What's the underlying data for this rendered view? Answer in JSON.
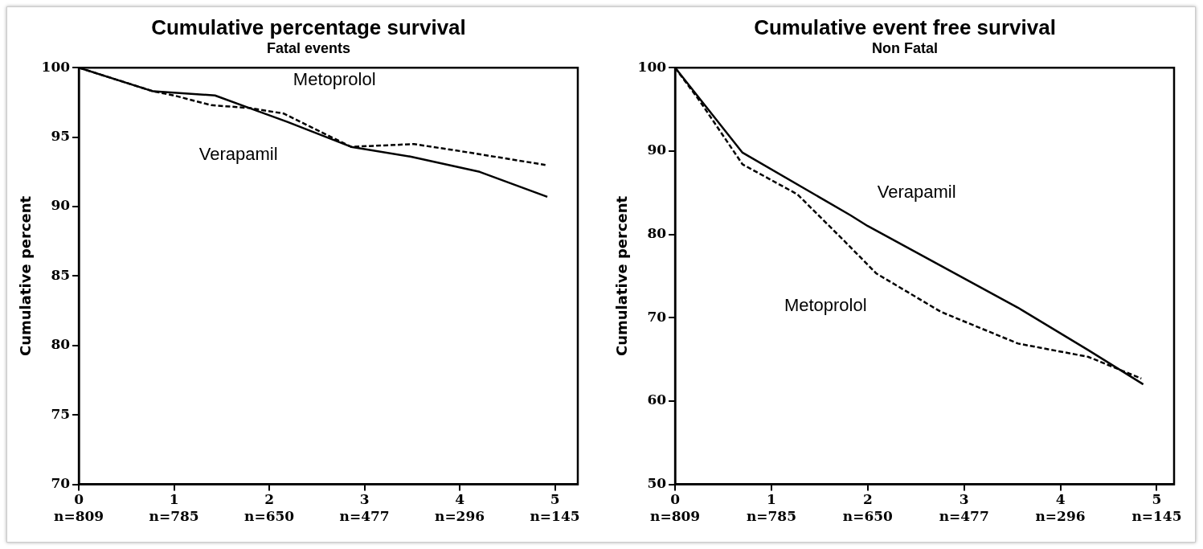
{
  "chart_data": [
    {
      "type": "line",
      "title": "Cumulative percentage survival",
      "subtitle": "Fatal events",
      "ylabel": "Cumulative percent",
      "xlim": [
        0,
        5.24
      ],
      "ylim": [
        70,
        100
      ],
      "xticks": [
        0,
        1,
        2,
        3,
        4,
        5
      ],
      "yticks": [
        70,
        75,
        80,
        85,
        90,
        95,
        100
      ],
      "grid": false,
      "legend": false,
      "marker": "none",
      "series": [
        {
          "name": "Verapamil",
          "color": "#000000",
          "line_style": "solid",
          "x": [
            0,
            0.78,
            1.43,
            1.79,
            2.19,
            2.86,
            3.48,
            4.21,
            4.92
          ],
          "values": [
            100,
            98.3,
            98.0,
            97.1,
            96.1,
            94.3,
            93.6,
            92.5,
            90.7
          ]
        },
        {
          "name": "Metoprolol",
          "color": "#000000",
          "line_style": "dashed",
          "x": [
            0,
            0.78,
            1.0,
            1.39,
            1.79,
            2.15,
            2.86,
            3.52,
            4.0,
            4.9
          ],
          "values": [
            100,
            98.3,
            98.0,
            97.3,
            97.1,
            96.7,
            94.3,
            94.5,
            94.0,
            93.0
          ]
        }
      ],
      "annotations": [
        "n=809",
        "n=785",
        "n=650",
        "n=477",
        "n=296",
        "n=145"
      ]
    },
    {
      "type": "line",
      "title": "Cumulative event free survival",
      "subtitle": "Non Fatal",
      "ylabel": "Cumulative percent",
      "xlim": [
        0,
        5.18
      ],
      "ylim": [
        50,
        100
      ],
      "xticks": [
        0,
        1,
        2,
        3,
        4,
        5
      ],
      "yticks": [
        50,
        60,
        70,
        80,
        90,
        100
      ],
      "grid": false,
      "legend": false,
      "marker": "none",
      "series": [
        {
          "name": "Verapamil",
          "color": "#000000",
          "line_style": "solid",
          "x": [
            0,
            0.7,
            1.82,
            2.0,
            3.56,
            4.29,
            4.86
          ],
          "values": [
            100,
            89.8,
            82.3,
            81.0,
            71.2,
            66.1,
            62.0
          ]
        },
        {
          "name": "Metoprolol",
          "color": "#000000",
          "line_style": "dashed",
          "x": [
            0,
            0.25,
            0.7,
            1.27,
            1.74,
            2.09,
            2.76,
            3.56,
            4.29,
            4.84
          ],
          "values": [
            100,
            96.1,
            88.4,
            84.8,
            79.4,
            75.3,
            70.7,
            66.9,
            65.3,
            62.7
          ]
        }
      ],
      "annotations": [
        "n=809",
        "n=785",
        "n=650",
        "n=477",
        "n=296",
        "n=145"
      ]
    }
  ]
}
